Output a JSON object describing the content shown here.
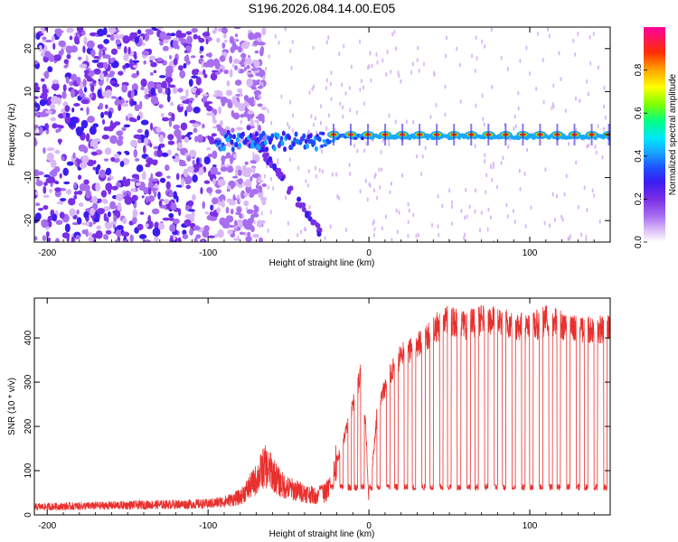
{
  "figure_title": "S196.2026.084.14.00.E05",
  "chart_data": [
    {
      "type": "heatmap",
      "title": "S196.2026.084.14.00.E05",
      "xlabel": "Height of straight line (km)",
      "ylabel": "Frequency (Hz)",
      "xlim": [
        -208,
        150
      ],
      "ylim": [
        -25,
        25
      ],
      "xticks": [
        -200,
        -100,
        0,
        100
      ],
      "xticklabels": [
        "-200",
        "-100",
        "0",
        "100"
      ],
      "yticks": [
        -20,
        -10,
        0,
        10,
        20
      ],
      "yticklabels": [
        "-20",
        "-10",
        "0",
        "10",
        "20"
      ],
      "colorbar": {
        "label": "Normalized spectral amplitude",
        "range": [
          0,
          1
        ],
        "ticks": [
          0.0,
          0.2,
          0.4,
          0.6,
          0.8
        ],
        "ticklabels": [
          "0.0",
          "0.2",
          "0.4",
          "0.6",
          "0.8"
        ],
        "colormap": [
          "#ffffff",
          "#d9b8f7",
          "#a86ef0",
          "#7a2fe6",
          "#3a1cf0",
          "#1f4cff",
          "#19a8ff",
          "#00e5ff",
          "#00ff88",
          "#7cff00",
          "#ffff00",
          "#ffa500",
          "#ff3000",
          "#ff00a0"
        ]
      },
      "features": {
        "noise_region_km": [
          -208,
          -85
        ],
        "onset_km": -95,
        "carrier_freq_hz": 0,
        "peak_burst_period_km": 10.7,
        "first_red_burst_km": -22
      }
    },
    {
      "type": "line",
      "xlabel": "Height of straight line (km)",
      "ylabel": "SNR (10 * v/v)",
      "xlim": [
        -208,
        150
      ],
      "ylim": [
        0,
        490
      ],
      "xticks": [
        -200,
        -100,
        0,
        100
      ],
      "xticklabels": [
        "-200",
        "-100",
        "0",
        "100"
      ],
      "yticks": [
        0,
        100,
        200,
        300,
        400
      ],
      "yticklabels": [
        "0",
        "100",
        "200",
        "300",
        "400"
      ],
      "series": [
        {
          "name": "SNR",
          "color": "#e8302e",
          "x": [
            -208,
            -150,
            -100,
            -90,
            -80,
            -75,
            -70,
            -65,
            -60,
            -55,
            -50,
            -45,
            -40,
            -35,
            -30,
            -25,
            -20,
            -15,
            -10,
            -5,
            -2,
            0,
            5,
            10,
            15,
            20,
            25,
            30,
            35,
            40,
            45,
            50,
            60,
            70,
            80,
            90,
            100,
            110,
            120,
            130,
            140,
            150
          ],
          "y": [
            18,
            22,
            25,
            30,
            40,
            60,
            80,
            110,
            95,
            70,
            60,
            55,
            50,
            45,
            40,
            60,
            120,
            180,
            250,
            320,
            200,
            20,
            230,
            290,
            330,
            360,
            370,
            380,
            400,
            420,
            430,
            440,
            430,
            440,
            440,
            430,
            420,
            440,
            430,
            420,
            420,
            420
          ],
          "dropouts_km": [
            -30,
            -23,
            -17,
            -12,
            -8,
            -4,
            1,
            6,
            12,
            17,
            23,
            28,
            34,
            39,
            45,
            50,
            56,
            62,
            67,
            73,
            79,
            84,
            90,
            96,
            101,
            107,
            113,
            118,
            124,
            130,
            135,
            141,
            147
          ],
          "dropout_floor": 55
        }
      ]
    }
  ],
  "colors": {
    "line": "#e8302e",
    "noise": "#7a2fe6"
  }
}
